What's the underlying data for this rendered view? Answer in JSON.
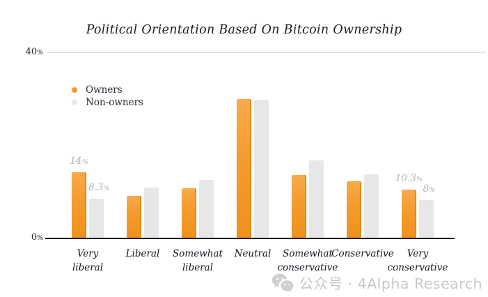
{
  "title": "Political Orientation Based On Bitcoin Ownership",
  "legend": {
    "owners_label": "Owners",
    "non_owners_label": "Non-owners"
  },
  "y_axis": {
    "top_tick": "40%",
    "bottom_tick": "0%"
  },
  "watermark": {
    "icon": "wechat-icon",
    "text": "公众号 · 4Alpha Research"
  },
  "colors": {
    "owners_bar": "#F59A2D",
    "owners_bar_edge": "#E9880F",
    "non_owners_bar": "#E7E7E7",
    "grid_line": "#D8D8D8",
    "axis_line": "#161616",
    "value_label": "#B3B0BA",
    "watermark": "#C8C8C8"
  },
  "chart_data": {
    "type": "bar",
    "title": "Political Orientation Based On Bitcoin Ownership",
    "categories": [
      "Very liberal",
      "Liberal",
      "Somewhat liberal",
      "Neutral",
      "Somewhat conservative",
      "Conservative",
      "Very conservative"
    ],
    "category_lines": [
      "Very\nliberal",
      "Liberal",
      "Somewhat\nliberal",
      "Neutral",
      "Somewhat\nconservative",
      "Conservative",
      "Very\nconservative"
    ],
    "series": [
      {
        "name": "Owners",
        "values": [
          14,
          9,
          10.6,
          29.7,
          13.5,
          12.1,
          10.3
        ]
      },
      {
        "name": "Non-owners",
        "values": [
          8.3,
          10.7,
          12.4,
          29.5,
          16.5,
          13.6,
          8
        ]
      }
    ],
    "data_labels": [
      {
        "owners": "14%",
        "non_owners": "8.3%"
      },
      null,
      null,
      null,
      null,
      null,
      {
        "owners": "10.3%",
        "non_owners": "8%"
      }
    ],
    "xlabel": "",
    "ylabel": "",
    "ylim": [
      0,
      40
    ],
    "y_ticks": [
      "0%",
      "40%"
    ],
    "grid": "single top gridline at 40%",
    "legend_position": "inside upper-left"
  }
}
